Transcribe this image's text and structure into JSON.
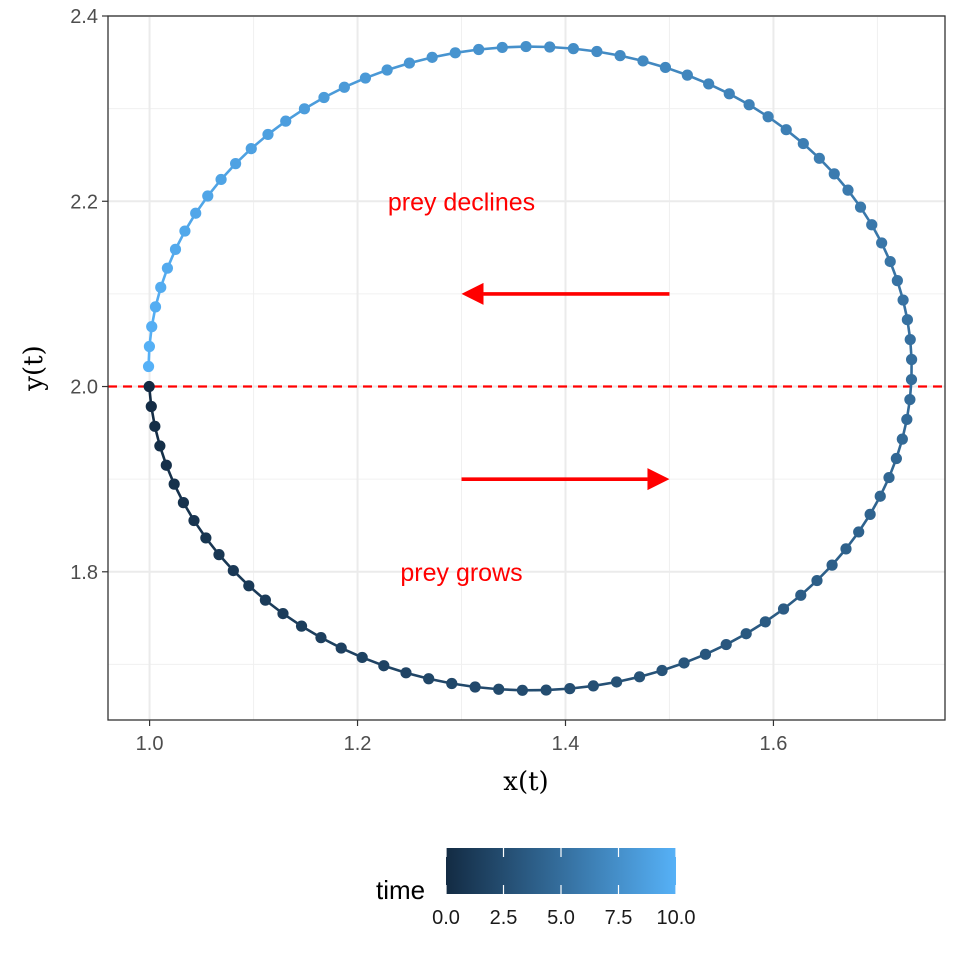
{
  "chart_data": {
    "type": "line",
    "subtype": "phase-portrait-path-with-points",
    "xlabel": "x(t)",
    "ylabel": "y(t)",
    "xlim": [
      0.96,
      1.765
    ],
    "ylim": [
      1.64,
      2.4
    ],
    "x_ticks": [
      1.0,
      1.2,
      1.4,
      1.6
    ],
    "x_tick_labels": [
      "1.0",
      "1.2",
      "1.4",
      "1.6"
    ],
    "y_ticks": [
      1.8,
      2.0,
      2.2,
      2.4
    ],
    "y_tick_labels": [
      "1.8",
      "2.0",
      "2.2",
      "2.4"
    ],
    "grid": true,
    "trajectory": {
      "description_source": "closed orbit around center (1.366, 2.02)",
      "center": [
        1.366,
        2.02
      ],
      "x_semi_axis": 0.367,
      "y_upper_amplitude": 0.347,
      "y_lower_amplitude": 0.348,
      "start": [
        1.0,
        2.0
      ],
      "direction": "counterclockwise (down along left side first)",
      "n_points": 101,
      "time_range": [
        0,
        10
      ]
    },
    "reference_line": {
      "y": 2.0,
      "style": "dashed",
      "color": "#ff0000"
    },
    "annotations": [
      {
        "text": "prey declines",
        "x": 1.3,
        "y": 2.2,
        "color": "#ff0000"
      },
      {
        "text": "prey grows",
        "x": 1.3,
        "y": 1.8,
        "color": "#ff0000"
      }
    ],
    "arrows": [
      {
        "from": [
          1.5,
          2.1
        ],
        "to": [
          1.3,
          2.1
        ],
        "color": "#ff0000"
      },
      {
        "from": [
          1.3,
          1.9
        ],
        "to": [
          1.5,
          1.9
        ],
        "color": "#ff0000"
      }
    ],
    "colorbar": {
      "title": "time",
      "range": [
        0,
        10
      ],
      "ticks": [
        0.0,
        2.5,
        5.0,
        7.5,
        10.0
      ],
      "tick_labels": [
        "0.0",
        "2.5",
        "5.0",
        "7.5",
        "10.0"
      ],
      "low_color": "#132B43",
      "high_color": "#56B1F7",
      "position": "bottom"
    }
  }
}
